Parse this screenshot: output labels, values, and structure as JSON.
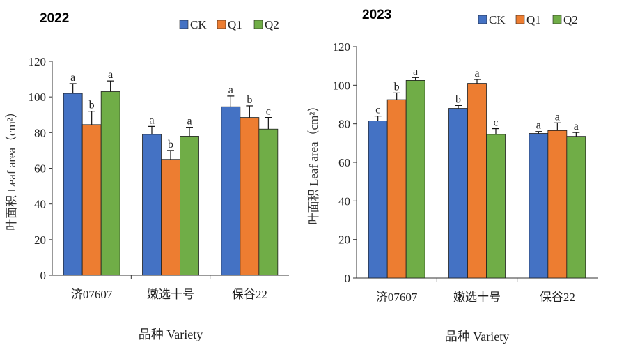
{
  "chart_data": [
    {
      "type": "bar",
      "title": "2022",
      "xlabel": "品种 Variety",
      "ylabel": "叶面积 Leaf area（cm²）",
      "ylim": [
        0,
        120
      ],
      "yticks": [
        0,
        20,
        40,
        60,
        80,
        100,
        120
      ],
      "categories": [
        "济07607",
        "嫩选十号",
        "保谷22"
      ],
      "legend_position": "top-right",
      "series": [
        {
          "name": "CK",
          "color": "#4472C4",
          "values": [
            102,
            79,
            94.5
          ],
          "errors": [
            5.5,
            4.5,
            6
          ],
          "letters": [
            "a",
            "a",
            "a"
          ]
        },
        {
          "name": "Q1",
          "color": "#ED7D31",
          "values": [
            84.5,
            65,
            88.5
          ],
          "errors": [
            7.5,
            5,
            6.5
          ],
          "letters": [
            "b",
            "b",
            "b"
          ]
        },
        {
          "name": "Q2",
          "color": "#70AD47",
          "values": [
            103,
            78,
            82
          ],
          "errors": [
            6,
            5,
            6.5
          ],
          "letters": [
            "a",
            "a",
            "c"
          ]
        }
      ]
    },
    {
      "type": "bar",
      "title": "2023",
      "xlabel": "品种 Variety",
      "ylabel": "叶面积 Leaf area（cm²）",
      "ylim": [
        0,
        120
      ],
      "yticks": [
        0,
        20,
        40,
        60,
        80,
        100,
        120
      ],
      "categories": [
        "济07607",
        "嫩选十号",
        "保谷22"
      ],
      "legend_position": "top-right",
      "series": [
        {
          "name": "CK",
          "color": "#4472C4",
          "values": [
            81.5,
            88,
            75
          ],
          "errors": [
            2.5,
            1.5,
            1
          ],
          "letters": [
            "c",
            "b",
            "a"
          ]
        },
        {
          "name": "Q1",
          "color": "#ED7D31",
          "values": [
            92.5,
            101,
            76.5
          ],
          "errors": [
            3.5,
            2,
            4
          ],
          "letters": [
            "b",
            "a",
            "a"
          ]
        },
        {
          "name": "Q2",
          "color": "#70AD47",
          "values": [
            102.5,
            74.5,
            73.5
          ],
          "errors": [
            1.5,
            3,
            2
          ],
          "letters": [
            "a",
            "c",
            "a"
          ]
        }
      ]
    }
  ]
}
